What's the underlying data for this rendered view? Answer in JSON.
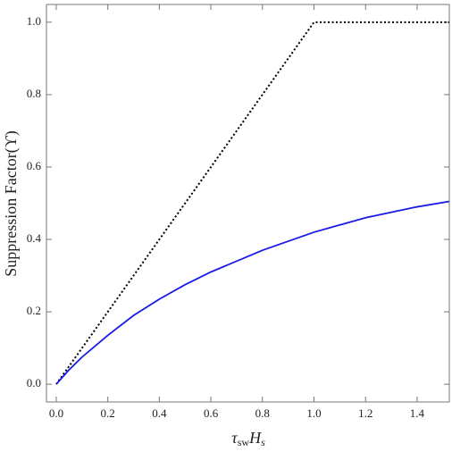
{
  "chart_data": {
    "type": "line",
    "xlabel": [
      "τ",
      "sw",
      "H",
      "s"
    ],
    "ylabel": "Suppression Factor(ϒ)",
    "xlim": [
      -0.038,
      1.525
    ],
    "ylim": [
      -0.049,
      1.049
    ],
    "xticks": [
      {
        "value": 0,
        "label": "0.0"
      },
      {
        "value": 0.2,
        "label": "0.2"
      },
      {
        "value": 0.4,
        "label": "0.4"
      },
      {
        "value": 0.6,
        "label": "0.6"
      },
      {
        "value": 0.8,
        "label": "0.8"
      },
      {
        "value": 1,
        "label": "1.0"
      },
      {
        "value": 1.2,
        "label": "1.2"
      },
      {
        "value": 1.4,
        "label": "1.4"
      }
    ],
    "yticks": [
      {
        "value": 0,
        "label": "0.0"
      },
      {
        "value": 0.2,
        "label": "0.2"
      },
      {
        "value": 0.4,
        "label": "0.4"
      },
      {
        "value": 0.6,
        "label": "0.6"
      },
      {
        "value": 0.8,
        "label": "0.8"
      },
      {
        "value": 1,
        "label": "1.0"
      }
    ],
    "series": [
      {
        "color": "#000000",
        "dash": "dotted",
        "x": [
          0,
          1,
          1.525
        ],
        "values": [
          0,
          1,
          1
        ]
      },
      {
        "color": "#1a1ae6",
        "dash": "solid",
        "x": [
          0,
          0.05,
          0.1,
          0.2,
          0.3,
          0.4,
          0.5,
          0.6,
          0.8,
          1.0,
          1.2,
          1.4,
          1.525
        ],
        "values": [
          0,
          0.04,
          0.075,
          0.135,
          0.19,
          0.235,
          0.275,
          0.31,
          0.37,
          0.42,
          0.46,
          0.49,
          0.505
        ]
      }
    ]
  }
}
